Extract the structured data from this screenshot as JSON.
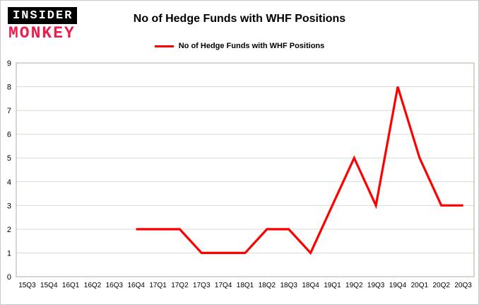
{
  "logo": {
    "line1": "INSIDER",
    "line2": "MONKEY"
  },
  "header": {
    "title": "No of Hedge Funds with WHF Positions"
  },
  "legend": {
    "label": "No of Hedge Funds with WHF Positions"
  },
  "colors": {
    "line": "#ff0000",
    "grid": "#d7dccf",
    "axis": "#a9b29c",
    "text": "#000000",
    "logo_red": "#ee1c4e",
    "logo_bg": "#000000"
  },
  "chart_data": {
    "type": "line",
    "title": "No of Hedge Funds with WHF Positions",
    "categories": [
      "15Q3",
      "15Q4",
      "16Q1",
      "16Q2",
      "16Q3",
      "16Q4",
      "17Q1",
      "17Q2",
      "17Q3",
      "17Q4",
      "18Q1",
      "18Q2",
      "18Q3",
      "18Q4",
      "19Q1",
      "19Q2",
      "19Q3",
      "19Q4",
      "20Q1",
      "20Q2",
      "20Q3"
    ],
    "series": [
      {
        "name": "No of Hedge Funds with WHF Positions",
        "color": "#ff0000",
        "values": [
          null,
          null,
          null,
          null,
          null,
          2,
          2,
          2,
          1,
          1,
          1,
          2,
          2,
          1,
          3,
          5,
          3,
          8,
          5,
          3,
          3
        ]
      }
    ],
    "xlabel": "",
    "ylabel": "",
    "ylim": [
      0,
      9
    ],
    "yticks": [
      0,
      1,
      2,
      3,
      4,
      5,
      6,
      7,
      8,
      9
    ],
    "grid": true,
    "legend_position": "top"
  }
}
